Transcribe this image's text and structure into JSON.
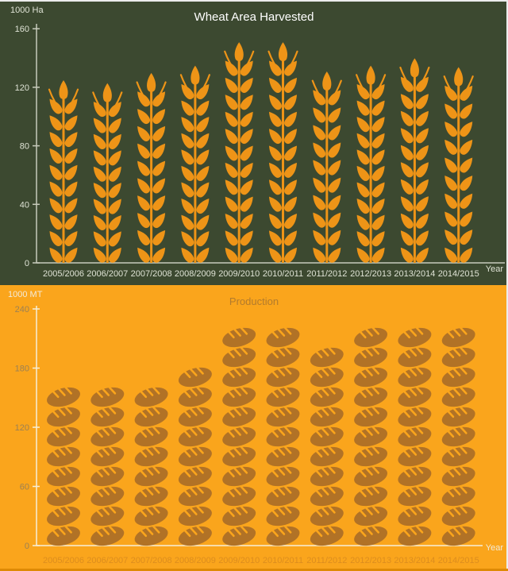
{
  "chart_data": [
    {
      "type": "pictorial-bar",
      "icon": "wheat-stalk",
      "title": "Wheat Area Harvested",
      "ylabel": "1000 Ha",
      "xlabel": "Year",
      "ylim": [
        0,
        160
      ],
      "y_ticks": [
        0,
        40,
        80,
        120,
        160
      ],
      "grid": false,
      "legend": "none",
      "categories": [
        "2005/2006",
        "2006/2007",
        "2007/2008",
        "2008/2009",
        "2009/2010",
        "2010/2011",
        "2011/2012",
        "2012/2013",
        "2013/2014",
        "2014/2015"
      ],
      "values": [
        125,
        123,
        130,
        135,
        151,
        151,
        131,
        135,
        140,
        134
      ],
      "colors": {
        "background": "#3C4930",
        "icon": "#EE9417",
        "axis": "#C7CBBC",
        "tick_text": "#DFE3D5",
        "title_text": "#FFFFFF",
        "category_text": "#DFE3D5",
        "year_text": "#DFE3D5"
      }
    },
    {
      "type": "pictorial-bar",
      "icon": "bread-loaf",
      "title": "Production",
      "ylabel": "1000 MT",
      "xlabel": "Year",
      "ylim": [
        0,
        240
      ],
      "y_ticks": [
        0,
        60,
        120,
        180,
        240
      ],
      "grid": false,
      "legend": "none",
      "units_per_icon": 20,
      "categories": [
        "2005/2006",
        "2006/2007",
        "2007/2008",
        "2008/2009",
        "2009/2010",
        "2010/2011",
        "2011/2012",
        "2012/2013",
        "2013/2014",
        "2014/2015"
      ],
      "values": [
        160,
        160,
        160,
        180,
        220,
        220,
        200,
        220,
        220,
        220
      ],
      "icon_counts": [
        8,
        8,
        8,
        9,
        11,
        11,
        10,
        11,
        11,
        11
      ],
      "colors": {
        "background": "#FAA51C",
        "icon": "#B17226",
        "axis": "#F6EED8",
        "tick_text": "#9C8153",
        "title_text": "#B27B2D",
        "category_text": "#DC8D1E",
        "year_text": "#F2EAD8"
      }
    }
  ]
}
